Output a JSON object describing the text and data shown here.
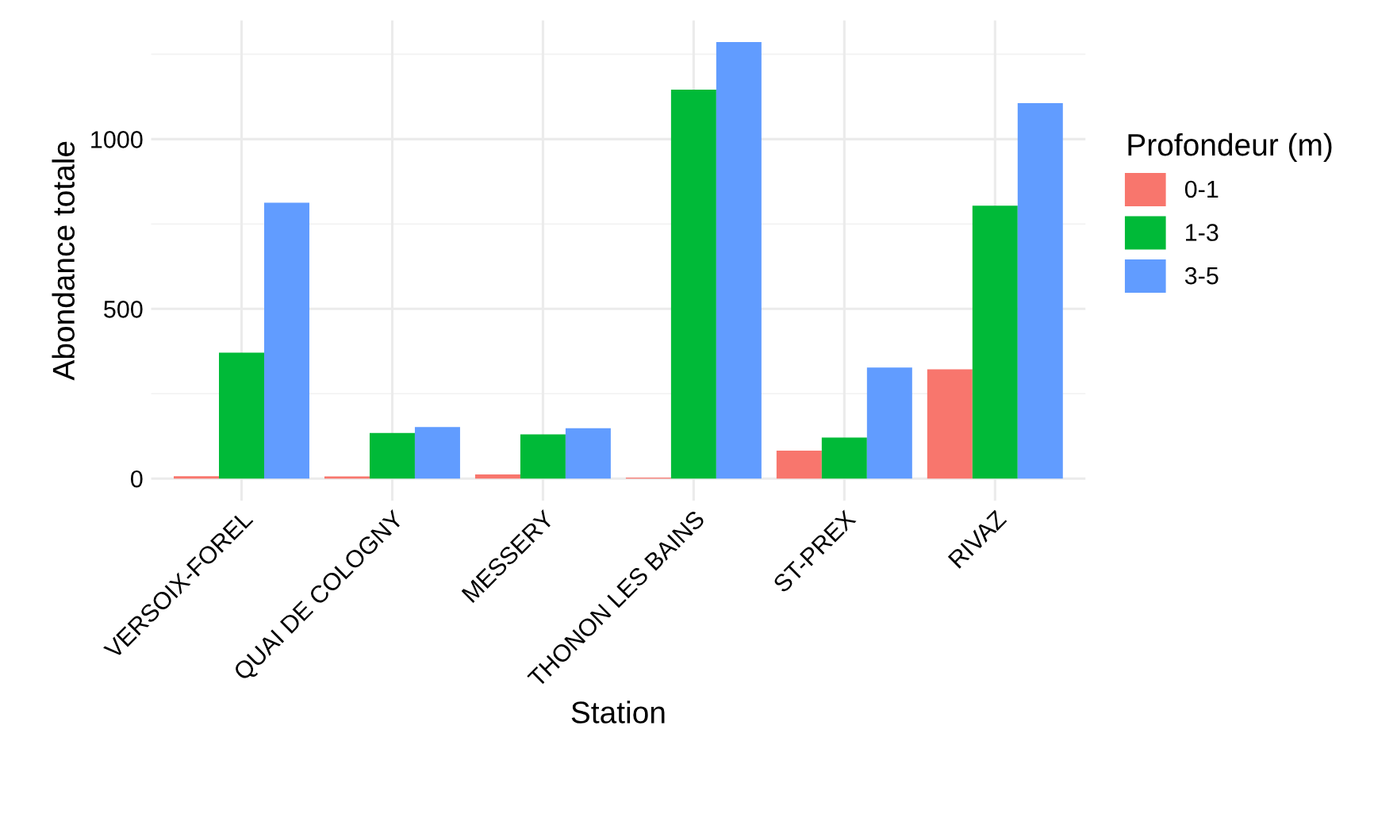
{
  "chart_data": {
    "type": "bar",
    "xlabel": "Station",
    "ylabel": "Abondance totale",
    "legend_title": "Profondeur (m)",
    "categories": [
      "VERSOIX-FOREL",
      "QUAI DE COLOGNY",
      "MESSERY",
      "THONON LES BAINS",
      "ST-PREX",
      "RIVAZ"
    ],
    "series": [
      {
        "name": "0-1",
        "color": "#f8766d",
        "values": [
          7,
          6,
          12,
          3,
          82,
          322
        ]
      },
      {
        "name": "1-3",
        "color": "#00ba38",
        "values": [
          371,
          134,
          130,
          1146,
          121,
          804
        ]
      },
      {
        "name": "3-5",
        "color": "#619cff",
        "values": [
          813,
          152,
          148,
          1286,
          327,
          1106
        ]
      }
    ],
    "ylim": [
      -65,
      1350
    ],
    "yticks": [
      0,
      500,
      1000
    ],
    "grid": true,
    "legend": "right"
  }
}
